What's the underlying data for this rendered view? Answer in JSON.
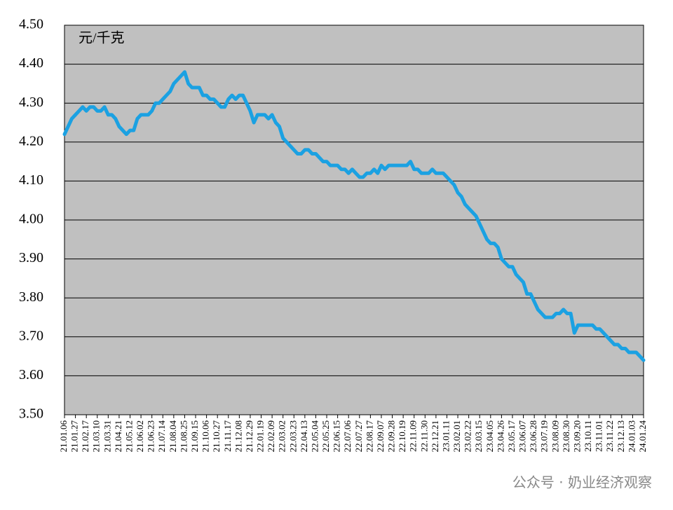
{
  "chart_data": {
    "type": "line",
    "unit_label": "元/千克",
    "annotation": "公众号 · 奶业经济观察",
    "color": "#1ba1e2",
    "plot_background": "#c0c0c0",
    "grid": true,
    "ylim": [
      3.5,
      4.5
    ],
    "yticks": [
      {
        "value": 3.5,
        "label": "3.50"
      },
      {
        "value": 3.6,
        "label": "3.60"
      },
      {
        "value": 3.7,
        "label": "3.70"
      },
      {
        "value": 3.8,
        "label": "3.80"
      },
      {
        "value": 3.9,
        "label": "3.90"
      },
      {
        "value": 4.0,
        "label": "4.00"
      },
      {
        "value": 4.1,
        "label": "4.10"
      },
      {
        "value": 4.2,
        "label": "4.20"
      },
      {
        "value": 4.3,
        "label": "4.30"
      },
      {
        "value": 4.4,
        "label": "4.40"
      },
      {
        "value": 4.5,
        "label": "4.50"
      }
    ],
    "categories": [
      "21.01.06",
      null,
      null,
      "21.01.27",
      null,
      null,
      "21.02.17",
      null,
      null,
      "21.03.10",
      null,
      null,
      "21.03.31",
      null,
      null,
      "21.04.21",
      null,
      null,
      "21.05.12",
      null,
      null,
      "21.06.02",
      null,
      null,
      "21.06.23",
      null,
      null,
      "21.07.14",
      null,
      null,
      "21.08.04",
      null,
      null,
      "21.08.25",
      null,
      null,
      "21.09.15",
      null,
      null,
      "21.10.06",
      null,
      null,
      "21.10.27",
      null,
      null,
      "21.11.17",
      null,
      null,
      "21.12.08",
      null,
      null,
      "21.12.29",
      null,
      null,
      "22.01.19",
      null,
      null,
      "22.02.09",
      null,
      null,
      "22.03.02",
      null,
      null,
      "22.03.23",
      null,
      null,
      "22.04.13",
      null,
      null,
      "22.05.04",
      null,
      null,
      "22.05.25",
      null,
      null,
      "22.06.15",
      null,
      null,
      "22.07.06",
      null,
      null,
      "22.07.27",
      null,
      null,
      "22.08.17",
      null,
      null,
      "22.09.07",
      null,
      null,
      "22.09.28",
      null,
      null,
      "22.10.19",
      null,
      null,
      "22.11.09",
      null,
      null,
      "22.11.30",
      null,
      null,
      "22.12.21",
      null,
      null,
      "23.01.11",
      null,
      null,
      "23.02.01",
      null,
      null,
      "23.02.22",
      null,
      null,
      "23.03.15",
      null,
      null,
      "23.04.05",
      null,
      null,
      "23.04.26",
      null,
      null,
      "23.05.17",
      null,
      null,
      "23.06.07",
      null,
      null,
      "23.06.28",
      null,
      null,
      "23.07.19",
      null,
      null,
      "23.08.09",
      null,
      null,
      "23.08.30",
      null,
      null,
      "23.09.20",
      null,
      null,
      "23.10.11",
      null,
      null,
      "23.11.01",
      null,
      null,
      "23.11.22",
      null,
      null,
      "23.12.13",
      null,
      null,
      "24.01.03",
      null,
      null,
      "24.01.24"
    ],
    "values": [
      4.22,
      4.24,
      4.26,
      4.27,
      4.28,
      4.29,
      4.28,
      4.29,
      4.29,
      4.28,
      4.28,
      4.29,
      4.27,
      4.27,
      4.26,
      4.24,
      4.23,
      4.22,
      4.23,
      4.23,
      4.26,
      4.27,
      4.27,
      4.27,
      4.28,
      4.3,
      4.3,
      4.31,
      4.32,
      4.33,
      4.35,
      4.36,
      4.37,
      4.38,
      4.35,
      4.34,
      4.34,
      4.34,
      4.32,
      4.32,
      4.31,
      4.31,
      4.3,
      4.29,
      4.29,
      4.31,
      4.32,
      4.31,
      4.32,
      4.32,
      4.3,
      4.28,
      4.25,
      4.27,
      4.27,
      4.27,
      4.26,
      4.27,
      4.25,
      4.24,
      4.21,
      4.2,
      4.19,
      4.18,
      4.17,
      4.17,
      4.18,
      4.18,
      4.17,
      4.17,
      4.16,
      4.15,
      4.15,
      4.14,
      4.14,
      4.14,
      4.13,
      4.13,
      4.12,
      4.13,
      4.12,
      4.11,
      4.11,
      4.12,
      4.12,
      4.13,
      4.12,
      4.14,
      4.13,
      4.14,
      4.14,
      4.14,
      4.14,
      4.14,
      4.14,
      4.15,
      4.13,
      4.13,
      4.12,
      4.12,
      4.12,
      4.13,
      4.12,
      4.12,
      4.12,
      4.11,
      4.1,
      4.09,
      4.07,
      4.06,
      4.04,
      4.03,
      4.02,
      4.01,
      3.99,
      3.97,
      3.95,
      3.94,
      3.94,
      3.93,
      3.9,
      3.89,
      3.88,
      3.88,
      3.86,
      3.85,
      3.84,
      3.81,
      3.81,
      3.79,
      3.77,
      3.76,
      3.75,
      3.75,
      3.75,
      3.76,
      3.76,
      3.77,
      3.76,
      3.76,
      3.71,
      3.73,
      3.73,
      3.73,
      3.73,
      3.73,
      3.72,
      3.72,
      3.71,
      3.7,
      3.69,
      3.68,
      3.68,
      3.67,
      3.67,
      3.66,
      3.66,
      3.66,
      3.65,
      3.64
    ]
  }
}
